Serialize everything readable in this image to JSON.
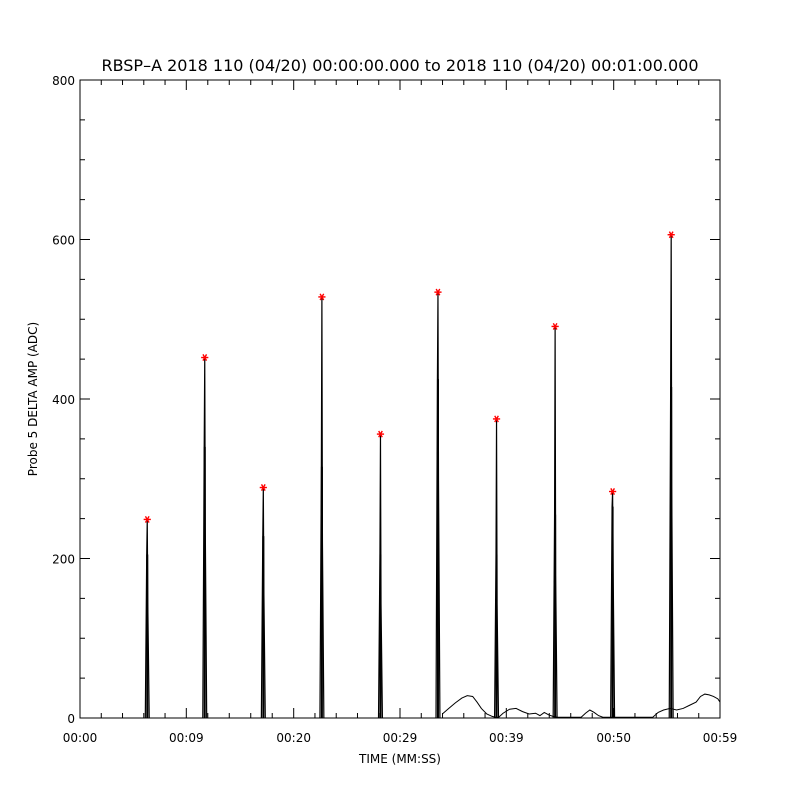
{
  "chart_data": {
    "type": "line",
    "title": "RBSP–A 2018 110 (04/20) 00:00:00.000 to 2018 110 (04/20) 00:01:00.000",
    "xlabel": "TIME (MM:SS)",
    "ylabel": "Probe 5 DELTA AMP (ADC)",
    "xlim": [
      0,
      59
    ],
    "ylim": [
      0,
      800
    ],
    "x_ticks": [
      0,
      9.8,
      19.7,
      29.5,
      39.3,
      49.2,
      59
    ],
    "x_tick_labels": [
      "00:00",
      "00:09",
      "00:20",
      "00:29",
      "00:39",
      "00:50",
      "00:59"
    ],
    "y_ticks": [
      0,
      200,
      400,
      600,
      800
    ],
    "y_tick_labels": [
      "0",
      "200",
      "400",
      "600",
      "800"
    ],
    "peak_marker": "*",
    "colors": {
      "trace": "#000000",
      "peak": "#ff0000",
      "axes": "#000000"
    },
    "peaks": [
      {
        "x": 6.2,
        "y": 249
      },
      {
        "x": 11.5,
        "y": 452
      },
      {
        "x": 16.9,
        "y": 289
      },
      {
        "x": 22.3,
        "y": 528
      },
      {
        "x": 27.7,
        "y": 356
      },
      {
        "x": 33.0,
        "y": 534
      },
      {
        "x": 38.4,
        "y": 375
      },
      {
        "x": 43.8,
        "y": 491
      },
      {
        "x": 49.1,
        "y": 284
      },
      {
        "x": 54.5,
        "y": 606
      }
    ],
    "spike_shoulders": [
      205,
      340,
      228,
      315,
      205,
      425,
      205,
      255,
      265,
      415
    ],
    "background": [
      [
        33.4,
        5
      ],
      [
        34.0,
        12
      ],
      [
        34.6,
        19
      ],
      [
        35.2,
        25
      ],
      [
        35.7,
        28
      ],
      [
        36.2,
        27
      ],
      [
        36.6,
        20
      ],
      [
        37.0,
        12
      ],
      [
        37.5,
        5
      ],
      [
        38.0,
        2
      ],
      [
        38.3,
        1
      ],
      [
        38.6,
        1
      ],
      [
        39.0,
        6
      ],
      [
        39.6,
        11
      ],
      [
        40.2,
        12
      ],
      [
        40.8,
        8
      ],
      [
        41.4,
        5
      ],
      [
        42.0,
        6
      ],
      [
        42.4,
        3
      ],
      [
        42.8,
        7
      ],
      [
        43.2,
        4
      ],
      [
        43.6,
        2
      ],
      [
        44.0,
        1
      ],
      [
        46.2,
        1
      ],
      [
        46.6,
        6
      ],
      [
        47.0,
        10
      ],
      [
        47.4,
        7
      ],
      [
        47.8,
        3
      ],
      [
        48.2,
        1
      ],
      [
        48.8,
        1
      ],
      [
        49.3,
        1
      ],
      [
        50.0,
        1
      ],
      [
        52.8,
        1
      ],
      [
        53.3,
        7
      ],
      [
        53.8,
        10
      ],
      [
        54.4,
        12
      ],
      [
        55.0,
        10
      ],
      [
        55.6,
        12
      ],
      [
        56.2,
        16
      ],
      [
        56.8,
        20
      ],
      [
        57.2,
        27
      ],
      [
        57.6,
        30
      ],
      [
        58.0,
        29
      ],
      [
        58.4,
        27
      ],
      [
        58.8,
        24
      ],
      [
        59.0,
        20
      ]
    ]
  }
}
